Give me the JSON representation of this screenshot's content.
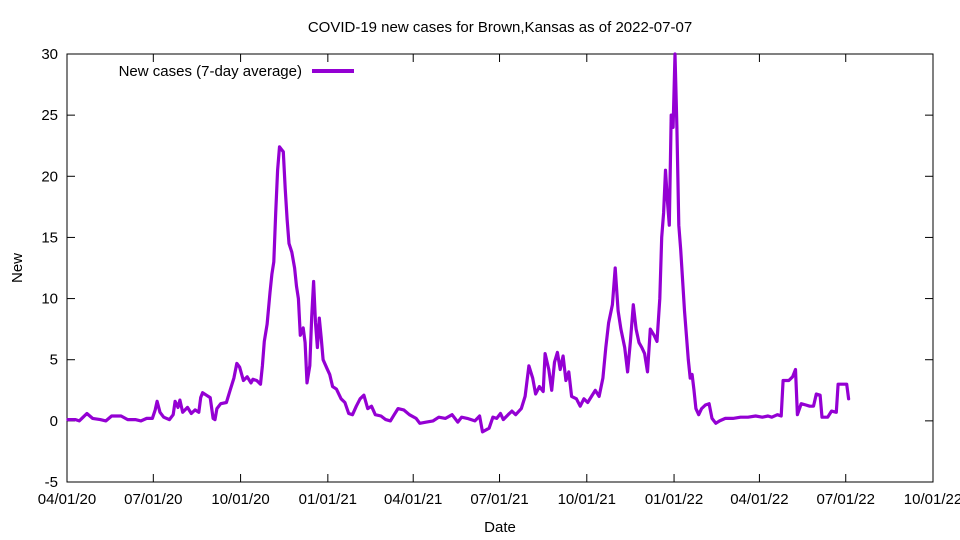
{
  "chart_data": {
    "type": "line",
    "title": "COVID-19 new cases for Brown,Kansas as of 2022-07-07",
    "xlabel": "Date",
    "ylabel": "New",
    "xlim": [
      "2020-04-01",
      "2022-10-01"
    ],
    "ylim": [
      -5,
      30
    ],
    "x_ticks": [
      "04/01/20",
      "07/01/20",
      "10/01/20",
      "01/01/21",
      "04/01/21",
      "07/01/21",
      "10/01/21",
      "01/01/22",
      "04/01/22",
      "07/01/22",
      "10/01/22"
    ],
    "y_ticks": [
      "-5",
      "0",
      "5",
      "10",
      "15",
      "20",
      "25",
      "30"
    ],
    "legend": {
      "position": "top-left",
      "label": "New cases (7-day average)"
    },
    "series": [
      {
        "name": "New cases (7-day average)",
        "color": "#9400D3",
        "points": [
          [
            "2020-04-02",
            0.1
          ],
          [
            "2020-04-10",
            0.1
          ],
          [
            "2020-04-14",
            0.0
          ],
          [
            "2020-04-18",
            0.3
          ],
          [
            "2020-04-22",
            0.6
          ],
          [
            "2020-04-28",
            0.2
          ],
          [
            "2020-05-06",
            0.1
          ],
          [
            "2020-05-12",
            0.0
          ],
          [
            "2020-05-18",
            0.4
          ],
          [
            "2020-05-28",
            0.4
          ],
          [
            "2020-06-04",
            0.1
          ],
          [
            "2020-06-12",
            0.1
          ],
          [
            "2020-06-18",
            0.0
          ],
          [
            "2020-06-24",
            0.2
          ],
          [
            "2020-06-30",
            0.2
          ],
          [
            "2020-07-03",
            0.9
          ],
          [
            "2020-07-05",
            1.6
          ],
          [
            "2020-07-08",
            0.7
          ],
          [
            "2020-07-12",
            0.3
          ],
          [
            "2020-07-18",
            0.1
          ],
          [
            "2020-07-22",
            0.5
          ],
          [
            "2020-07-24",
            1.6
          ],
          [
            "2020-07-27",
            1.1
          ],
          [
            "2020-07-29",
            1.7
          ],
          [
            "2020-08-01",
            0.7
          ],
          [
            "2020-08-06",
            1.1
          ],
          [
            "2020-08-10",
            0.6
          ],
          [
            "2020-08-14",
            0.9
          ],
          [
            "2020-08-18",
            0.7
          ],
          [
            "2020-08-20",
            1.9
          ],
          [
            "2020-08-22",
            2.3
          ],
          [
            "2020-08-26",
            2.1
          ],
          [
            "2020-08-30",
            1.9
          ],
          [
            "2020-09-02",
            0.2
          ],
          [
            "2020-09-04",
            0.1
          ],
          [
            "2020-09-06",
            1.0
          ],
          [
            "2020-09-10",
            1.4
          ],
          [
            "2020-09-16",
            1.5
          ],
          [
            "2020-09-20",
            2.5
          ],
          [
            "2020-09-24",
            3.5
          ],
          [
            "2020-09-27",
            4.7
          ],
          [
            "2020-09-30",
            4.4
          ],
          [
            "2020-10-04",
            3.3
          ],
          [
            "2020-10-08",
            3.6
          ],
          [
            "2020-10-12",
            3.1
          ],
          [
            "2020-10-14",
            3.4
          ],
          [
            "2020-10-18",
            3.3
          ],
          [
            "2020-10-22",
            3.0
          ],
          [
            "2020-10-24",
            4.5
          ],
          [
            "2020-10-26",
            6.5
          ],
          [
            "2020-10-29",
            7.9
          ],
          [
            "2020-11-01",
            10.5
          ],
          [
            "2020-11-03",
            12.0
          ],
          [
            "2020-11-05",
            13.0
          ],
          [
            "2020-11-07",
            17.0
          ],
          [
            "2020-11-09",
            20.5
          ],
          [
            "2020-11-11",
            22.4
          ],
          [
            "2020-11-13",
            22.2
          ],
          [
            "2020-11-15",
            22.0
          ],
          [
            "2020-11-17",
            19.0
          ],
          [
            "2020-11-19",
            16.5
          ],
          [
            "2020-11-21",
            14.5
          ],
          [
            "2020-11-24",
            13.8
          ],
          [
            "2020-11-27",
            12.5
          ],
          [
            "2020-11-29",
            11.0
          ],
          [
            "2020-12-01",
            10.0
          ],
          [
            "2020-12-03",
            7.0
          ],
          [
            "2020-12-06",
            7.6
          ],
          [
            "2020-12-08",
            6.4
          ],
          [
            "2020-12-10",
            3.1
          ],
          [
            "2020-12-13",
            4.5
          ],
          [
            "2020-12-15",
            8.5
          ],
          [
            "2020-12-17",
            11.4
          ],
          [
            "2020-12-19",
            8.0
          ],
          [
            "2020-12-21",
            6.0
          ],
          [
            "2020-12-23",
            8.4
          ],
          [
            "2020-12-25",
            6.8
          ],
          [
            "2020-12-27",
            5.0
          ],
          [
            "2020-12-31",
            4.3
          ],
          [
            "2021-01-03",
            3.8
          ],
          [
            "2021-01-06",
            2.8
          ],
          [
            "2021-01-10",
            2.6
          ],
          [
            "2021-01-15",
            1.8
          ],
          [
            "2021-01-19",
            1.5
          ],
          [
            "2021-01-23",
            0.6
          ],
          [
            "2021-01-27",
            0.5
          ],
          [
            "2021-01-31",
            1.2
          ],
          [
            "2021-02-04",
            1.8
          ],
          [
            "2021-02-08",
            2.1
          ],
          [
            "2021-02-12",
            1.0
          ],
          [
            "2021-02-16",
            1.2
          ],
          [
            "2021-02-20",
            0.5
          ],
          [
            "2021-02-26",
            0.4
          ],
          [
            "2021-03-03",
            0.1
          ],
          [
            "2021-03-08",
            0.0
          ],
          [
            "2021-03-12",
            0.5
          ],
          [
            "2021-03-16",
            1.0
          ],
          [
            "2021-03-22",
            0.9
          ],
          [
            "2021-03-28",
            0.5
          ],
          [
            "2021-04-04",
            0.2
          ],
          [
            "2021-04-08",
            -0.2
          ],
          [
            "2021-04-15",
            -0.1
          ],
          [
            "2021-04-22",
            0.0
          ],
          [
            "2021-04-28",
            0.3
          ],
          [
            "2021-05-05",
            0.2
          ],
          [
            "2021-05-12",
            0.5
          ],
          [
            "2021-05-18",
            -0.1
          ],
          [
            "2021-05-22",
            0.3
          ],
          [
            "2021-05-28",
            0.2
          ],
          [
            "2021-06-05",
            0.0
          ],
          [
            "2021-06-10",
            0.4
          ],
          [
            "2021-06-13",
            -0.9
          ],
          [
            "2021-06-20",
            -0.6
          ],
          [
            "2021-06-24",
            0.3
          ],
          [
            "2021-06-28",
            0.2
          ],
          [
            "2021-07-02",
            0.6
          ],
          [
            "2021-07-05",
            0.1
          ],
          [
            "2021-07-10",
            0.5
          ],
          [
            "2021-07-14",
            0.8
          ],
          [
            "2021-07-18",
            0.5
          ],
          [
            "2021-07-24",
            1.0
          ],
          [
            "2021-07-28",
            2.0
          ],
          [
            "2021-08-01",
            4.5
          ],
          [
            "2021-08-05",
            3.5
          ],
          [
            "2021-08-08",
            2.2
          ],
          [
            "2021-08-12",
            2.8
          ],
          [
            "2021-08-16",
            2.4
          ],
          [
            "2021-08-18",
            5.5
          ],
          [
            "2021-08-22",
            4.2
          ],
          [
            "2021-08-25",
            2.5
          ],
          [
            "2021-08-28",
            4.8
          ],
          [
            "2021-08-31",
            5.6
          ],
          [
            "2021-09-03",
            4.2
          ],
          [
            "2021-09-06",
            5.3
          ],
          [
            "2021-09-09",
            3.3
          ],
          [
            "2021-09-12",
            4.0
          ],
          [
            "2021-09-15",
            2.0
          ],
          [
            "2021-09-20",
            1.8
          ],
          [
            "2021-09-24",
            1.2
          ],
          [
            "2021-09-28",
            1.8
          ],
          [
            "2021-10-02",
            1.5
          ],
          [
            "2021-10-06",
            2.0
          ],
          [
            "2021-10-10",
            2.5
          ],
          [
            "2021-10-14",
            2.0
          ],
          [
            "2021-10-18",
            3.5
          ],
          [
            "2021-10-21",
            6.0
          ],
          [
            "2021-10-24",
            8.0
          ],
          [
            "2021-10-28",
            9.5
          ],
          [
            "2021-10-31",
            12.5
          ],
          [
            "2021-11-03",
            9.0
          ],
          [
            "2021-11-06",
            7.5
          ],
          [
            "2021-11-10",
            6.0
          ],
          [
            "2021-11-13",
            4.0
          ],
          [
            "2021-11-16",
            6.5
          ],
          [
            "2021-11-19",
            9.5
          ],
          [
            "2021-11-22",
            7.5
          ],
          [
            "2021-11-25",
            6.4
          ],
          [
            "2021-11-28",
            6.0
          ],
          [
            "2021-12-01",
            5.5
          ],
          [
            "2021-12-04",
            4.0
          ],
          [
            "2021-12-07",
            7.5
          ],
          [
            "2021-12-11",
            7.0
          ],
          [
            "2021-12-14",
            6.5
          ],
          [
            "2021-12-17",
            10.0
          ],
          [
            "2021-12-19",
            15.0
          ],
          [
            "2021-12-21",
            17.0
          ],
          [
            "2021-12-23",
            20.5
          ],
          [
            "2021-12-25",
            18.0
          ],
          [
            "2021-12-27",
            16.0
          ],
          [
            "2021-12-29",
            25.0
          ],
          [
            "2021-12-31",
            24.0
          ],
          [
            "2022-01-02",
            30.0
          ],
          [
            "2022-01-04",
            24.0
          ],
          [
            "2022-01-06",
            16.0
          ],
          [
            "2022-01-08",
            14.0
          ],
          [
            "2022-01-10",
            11.5
          ],
          [
            "2022-01-12",
            9.0
          ],
          [
            "2022-01-14",
            7.0
          ],
          [
            "2022-01-16",
            5.0
          ],
          [
            "2022-01-18",
            3.5
          ],
          [
            "2022-01-20",
            3.8
          ],
          [
            "2022-01-22",
            2.5
          ],
          [
            "2022-01-24",
            1.0
          ],
          [
            "2022-01-27",
            0.5
          ],
          [
            "2022-01-30",
            1.0
          ],
          [
            "2022-02-03",
            1.3
          ],
          [
            "2022-02-07",
            1.4
          ],
          [
            "2022-02-10",
            0.2
          ],
          [
            "2022-02-14",
            -0.2
          ],
          [
            "2022-02-18",
            0.0
          ],
          [
            "2022-02-24",
            0.2
          ],
          [
            "2022-03-04",
            0.2
          ],
          [
            "2022-03-12",
            0.3
          ],
          [
            "2022-03-20",
            0.3
          ],
          [
            "2022-03-28",
            0.4
          ],
          [
            "2022-04-04",
            0.3
          ],
          [
            "2022-04-10",
            0.4
          ],
          [
            "2022-04-14",
            0.3
          ],
          [
            "2022-04-20",
            0.5
          ],
          [
            "2022-04-24",
            0.4
          ],
          [
            "2022-04-26",
            3.3
          ],
          [
            "2022-05-02",
            3.3
          ],
          [
            "2022-05-06",
            3.6
          ],
          [
            "2022-05-09",
            4.2
          ],
          [
            "2022-05-11",
            0.5
          ],
          [
            "2022-05-15",
            1.4
          ],
          [
            "2022-05-20",
            1.3
          ],
          [
            "2022-05-24",
            1.2
          ],
          [
            "2022-05-28",
            1.2
          ],
          [
            "2022-05-31",
            2.2
          ],
          [
            "2022-06-04",
            2.1
          ],
          [
            "2022-06-06",
            0.3
          ],
          [
            "2022-06-12",
            0.3
          ],
          [
            "2022-06-16",
            0.8
          ],
          [
            "2022-06-21",
            0.7
          ],
          [
            "2022-06-23",
            3.0
          ],
          [
            "2022-06-28",
            3.0
          ],
          [
            "2022-07-02",
            3.0
          ],
          [
            "2022-07-04",
            1.8
          ]
        ]
      }
    ]
  }
}
